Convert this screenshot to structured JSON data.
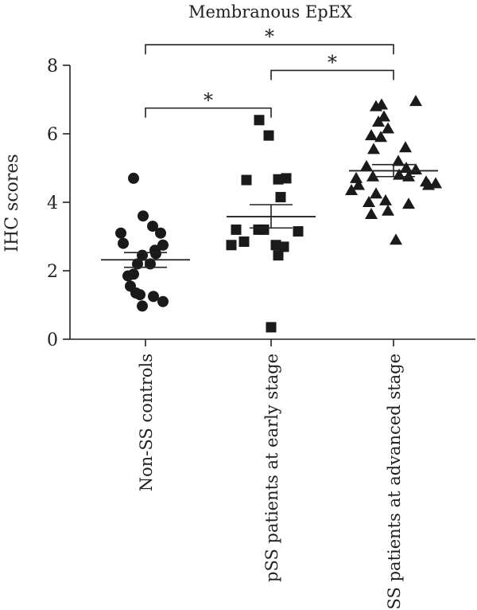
{
  "chart_data": {
    "type": "scatter",
    "title": "Membranous EpEX",
    "ylabel": "IHC scores",
    "xlabel": "",
    "ylim": [
      0,
      8
    ],
    "yticks": [
      0,
      2,
      4,
      6,
      8
    ],
    "categories": [
      "Non-SS controls",
      "pSS patients at early stage",
      "pSS patients at advanced stage"
    ],
    "series": [
      {
        "marker": "circle",
        "mean": 2.32,
        "sem_low": 2.1,
        "sem_high": 2.53,
        "values": [
          4.7,
          3.6,
          3.3,
          3.1,
          3.1,
          2.6,
          2.8,
          2.75,
          2.45,
          2.5,
          2.2,
          1.9,
          1.85,
          2.2,
          1.35,
          1.55,
          1.3,
          1.25,
          1.1,
          0.97
        ]
      },
      {
        "marker": "square",
        "mean": 3.58,
        "sem_low": 3.25,
        "sem_high": 3.93,
        "values": [
          6.4,
          5.95,
          4.67,
          4.65,
          4.7,
          4.15,
          3.2,
          3.2,
          3.15,
          3.2,
          2.75,
          2.85,
          2.7,
          2.45,
          2.75,
          0.35
        ]
      },
      {
        "marker": "triangle",
        "mean": 4.92,
        "sem_low": 4.75,
        "sem_high": 5.1,
        "values": [
          6.85,
          6.8,
          6.95,
          6.5,
          6.35,
          6.15,
          5.95,
          5.9,
          5.6,
          5.55,
          5.2,
          5.05,
          5.0,
          4.95,
          4.8,
          4.75,
          4.75,
          4.7,
          4.6,
          4.55,
          4.5,
          4.5,
          4.35,
          4.25,
          4.05,
          4.0,
          3.95,
          3.75,
          3.65,
          2.9
        ]
      }
    ],
    "significance": [
      {
        "from": 0,
        "to": 2,
        "y": 8.6,
        "label": "*"
      },
      {
        "from": 1,
        "to": 2,
        "y": 7.85,
        "label": "*"
      },
      {
        "from": 0,
        "to": 1,
        "y": 6.75,
        "label": "*"
      }
    ],
    "colors": {
      "marker": "#1a1a1a",
      "axis": "#222222"
    }
  }
}
